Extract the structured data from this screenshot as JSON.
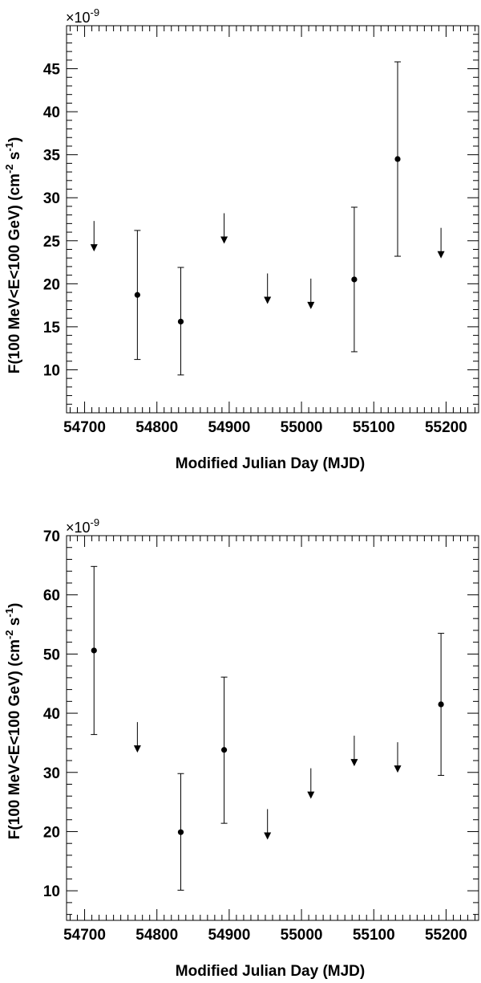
{
  "chart_data": [
    {
      "type": "scatter",
      "xlabel": "Modified Julian Day (MJD)",
      "ylabel": "F(100 MeV<E<100 GeV) (cm",
      "ylabel_sup1": "-2",
      "ylabel_mid": " s",
      "ylabel_sup2": "-1",
      "ylabel_end": ")",
      "y_multiplier": "×10",
      "y_multiplier_exp": "-9",
      "xlim": [
        54675,
        55245
      ],
      "ylim": [
        5,
        50
      ],
      "xticks": [
        54700,
        54800,
        54900,
        55000,
        55100,
        55200
      ],
      "yticks": [
        10,
        15,
        20,
        25,
        30,
        35,
        40,
        45
      ],
      "detections": [
        {
          "x": 54773,
          "y": 18.7,
          "ylo": 11.2,
          "yhi": 26.2
        },
        {
          "x": 54833,
          "y": 15.6,
          "ylo": 9.4,
          "yhi": 21.9
        },
        {
          "x": 55073,
          "y": 20.5,
          "ylo": 12.1,
          "yhi": 28.9
        },
        {
          "x": 55133,
          "y": 34.5,
          "ylo": 23.2,
          "yhi": 45.8
        }
      ],
      "upper_limits": [
        {
          "x": 54713,
          "y": 27.3
        },
        {
          "x": 54893,
          "y": 28.2
        },
        {
          "x": 54953,
          "y": 21.2
        },
        {
          "x": 55013,
          "y": 20.6
        },
        {
          "x": 55193,
          "y": 26.5
        }
      ]
    },
    {
      "type": "scatter",
      "xlabel": "Modified Julian Day (MJD)",
      "ylabel": "F(100 MeV<E<100 GeV) (cm",
      "ylabel_sup1": "-2",
      "ylabel_mid": " s",
      "ylabel_sup2": "-1",
      "ylabel_end": ")",
      "y_multiplier": "×10",
      "y_multiplier_exp": "-9",
      "xlim": [
        54675,
        55245
      ],
      "ylim": [
        5,
        70
      ],
      "xticks": [
        54700,
        54800,
        54900,
        55000,
        55100,
        55200
      ],
      "yticks": [
        10,
        20,
        30,
        40,
        50,
        60,
        70
      ],
      "detections": [
        {
          "x": 54713,
          "y": 50.6,
          "ylo": 36.4,
          "yhi": 64.8
        },
        {
          "x": 54833,
          "y": 19.9,
          "ylo": 10.1,
          "yhi": 29.8
        },
        {
          "x": 54893,
          "y": 33.8,
          "ylo": 21.4,
          "yhi": 46.1
        },
        {
          "x": 55193,
          "y": 41.5,
          "ylo": 29.5,
          "yhi": 53.5
        }
      ],
      "upper_limits": [
        {
          "x": 54773,
          "y": 38.5
        },
        {
          "x": 54953,
          "y": 23.8
        },
        {
          "x": 55013,
          "y": 30.7
        },
        {
          "x": 55073,
          "y": 36.2
        },
        {
          "x": 55133,
          "y": 35.1
        }
      ]
    }
  ]
}
